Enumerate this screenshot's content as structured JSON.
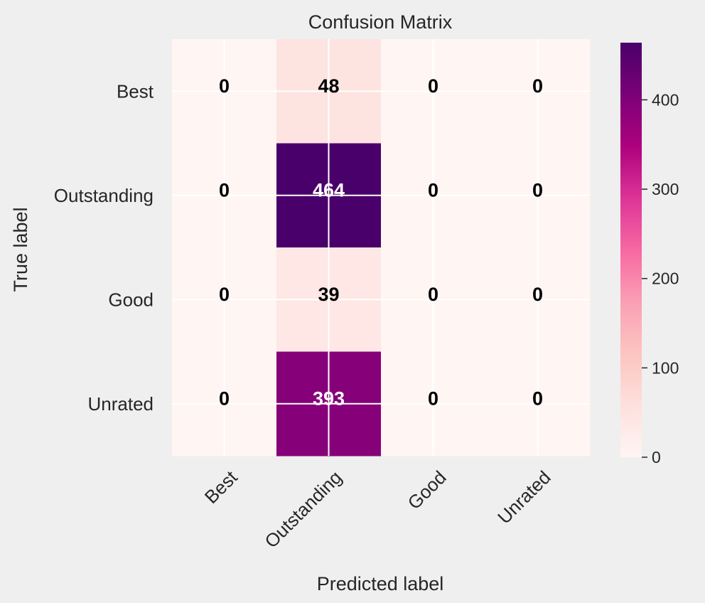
{
  "chart_data": {
    "type": "heatmap",
    "title": "Confusion Matrix",
    "xlabel": "Predicted label",
    "ylabel": "True label",
    "x_categories": [
      "Best",
      "Outstanding",
      "Good",
      "Unrated"
    ],
    "y_categories": [
      "Best",
      "Outstanding",
      "Good",
      "Unrated"
    ],
    "values": [
      [
        0,
        48,
        0,
        0
      ],
      [
        0,
        464,
        0,
        0
      ],
      [
        0,
        39,
        0,
        0
      ],
      [
        0,
        393,
        0,
        0
      ]
    ],
    "colormap": "RdPu",
    "colorbar": {
      "range": [
        0,
        464
      ],
      "ticks": [
        0,
        100,
        200,
        300,
        400
      ],
      "tick_labels": [
        "0",
        "100",
        "200",
        "300",
        "400"
      ]
    },
    "grid": true,
    "colors": {
      "background": "#efefef",
      "low": "#fff5f3",
      "high": "#49006a",
      "text_dark": "#000000",
      "text_light": "#ffffff"
    }
  }
}
